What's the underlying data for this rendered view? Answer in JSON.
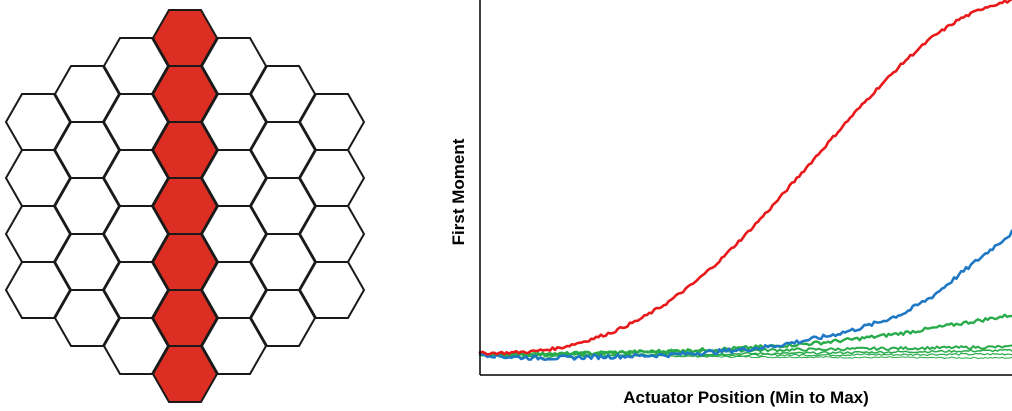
{
  "hex_grid": {
    "rows_per_column": [
      4,
      5,
      6,
      7,
      6,
      5,
      4
    ],
    "highlighted_column_index": 3,
    "highlight_color": "#dd2e23",
    "empty_color": "#ffffff",
    "outline_color": "#1a1a1a"
  },
  "chart_data": {
    "type": "line",
    "title": "",
    "xlabel": "Actuator Position (Min to Max)",
    "ylabel": "First Moment",
    "xlim": [
      0,
      1
    ],
    "ylim": [
      0,
      1
    ],
    "grid": false,
    "legend": "none",
    "series": [
      {
        "color": "#e8191b",
        "stroke": 2.6,
        "jitter": 0.004,
        "x": [
          0,
          0.05,
          0.1,
          0.15,
          0.2,
          0.25,
          0.3,
          0.35,
          0.4,
          0.45,
          0.5,
          0.55,
          0.6,
          0.65,
          0.7,
          0.75,
          0.8,
          0.85,
          0.9,
          0.95,
          1.0
        ],
        "y": [
          0.005,
          0.006,
          0.01,
          0.02,
          0.04,
          0.065,
          0.1,
          0.145,
          0.2,
          0.265,
          0.34,
          0.42,
          0.505,
          0.59,
          0.675,
          0.755,
          0.83,
          0.895,
          0.945,
          0.98,
          1.0
        ]
      },
      {
        "color": "#1f78c4",
        "stroke": 2.6,
        "jitter": 0.006,
        "x": [
          0,
          0.05,
          0.1,
          0.15,
          0.2,
          0.25,
          0.3,
          0.35,
          0.4,
          0.45,
          0.5,
          0.55,
          0.6,
          0.65,
          0.7,
          0.75,
          0.8,
          0.85,
          0.9,
          0.95,
          1.0
        ],
        "y": [
          0.003,
          -0.005,
          -0.008,
          -0.008,
          -0.006,
          -0.004,
          -0.002,
          0.0,
          0.005,
          0.01,
          0.016,
          0.025,
          0.038,
          0.052,
          0.07,
          0.092,
          0.12,
          0.165,
          0.225,
          0.285,
          0.345
        ]
      },
      {
        "color": "#2aab4b",
        "stroke": 2.4,
        "jitter": 0.005,
        "x": [
          0,
          0.05,
          0.1,
          0.15,
          0.2,
          0.25,
          0.3,
          0.35,
          0.4,
          0.45,
          0.5,
          0.55,
          0.6,
          0.65,
          0.7,
          0.75,
          0.8,
          0.85,
          0.9,
          0.95,
          1.0
        ],
        "y": [
          0.004,
          0.002,
          0.002,
          0.003,
          0.005,
          0.007,
          0.009,
          0.011,
          0.013,
          0.016,
          0.02,
          0.025,
          0.03,
          0.036,
          0.044,
          0.053,
          0.063,
          0.075,
          0.088,
          0.1,
          0.113
        ]
      },
      {
        "color": "#2aab4b",
        "stroke": 2.0,
        "jitter": 0.004,
        "x": [
          0,
          0.05,
          0.1,
          0.15,
          0.2,
          0.25,
          0.3,
          0.35,
          0.4,
          0.45,
          0.5,
          0.55,
          0.6,
          0.65,
          0.7,
          0.75,
          0.8,
          0.85,
          0.9,
          0.95,
          1.0
        ],
        "y": [
          0.002,
          0.0,
          0.001,
          0.003,
          0.005,
          0.007,
          0.009,
          0.01,
          0.011,
          0.012,
          0.013,
          0.014,
          0.015,
          0.016,
          0.017,
          0.018,
          0.019,
          0.02,
          0.021,
          0.022,
          0.023
        ]
      },
      {
        "color": "#2aab4b",
        "stroke": 1.5,
        "jitter": 0.003,
        "x": [
          0,
          0.05,
          0.1,
          0.15,
          0.2,
          0.25,
          0.3,
          0.35,
          0.4,
          0.45,
          0.5,
          0.55,
          0.6,
          0.65,
          0.7,
          0.75,
          0.8,
          0.85,
          0.9,
          0.95,
          1.0
        ],
        "y": [
          0.0,
          0.002,
          0.003,
          0.002,
          0.0,
          -0.001,
          0.0,
          0.001,
          0.002,
          0.003,
          0.004,
          0.004,
          0.005,
          0.006,
          0.007,
          0.008,
          0.009,
          0.01,
          0.011,
          0.012,
          0.013
        ]
      },
      {
        "color": "#2aab4b",
        "stroke": 1.2,
        "jitter": 0.003,
        "x": [
          0,
          0.05,
          0.1,
          0.15,
          0.2,
          0.25,
          0.3,
          0.35,
          0.4,
          0.45,
          0.5,
          0.55,
          0.6,
          0.65,
          0.7,
          0.75,
          0.8,
          0.85,
          0.9,
          0.95,
          1.0
        ],
        "y": [
          0.001,
          -0.004,
          -0.006,
          -0.005,
          -0.004,
          -0.003,
          -0.003,
          -0.002,
          -0.002,
          -0.001,
          -0.001,
          0.0,
          0.0,
          0.0,
          0.001,
          0.001,
          0.001,
          0.002,
          0.002,
          0.002,
          0.003
        ]
      },
      {
        "color": "#2aab4b",
        "stroke": 1.0,
        "jitter": 0.002,
        "x": [
          0,
          0.05,
          0.1,
          0.15,
          0.2,
          0.25,
          0.3,
          0.35,
          0.4,
          0.45,
          0.5,
          0.55,
          0.6,
          0.65,
          0.7,
          0.75,
          0.8,
          0.85,
          0.9,
          0.95,
          1.0
        ],
        "y": [
          0.0,
          0.004,
          0.005,
          0.004,
          0.002,
          0.0,
          -0.002,
          -0.003,
          -0.004,
          -0.005,
          -0.005,
          -0.006,
          -0.006,
          -0.006,
          -0.007,
          -0.007,
          -0.007,
          -0.008,
          -0.008,
          -0.008,
          -0.008
        ]
      }
    ]
  }
}
